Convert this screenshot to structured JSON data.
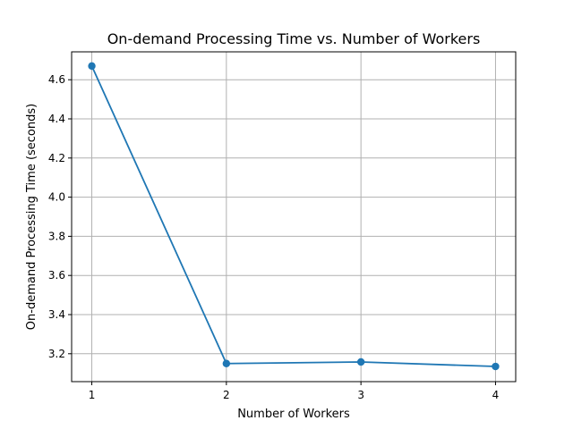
{
  "chart_data": {
    "type": "line",
    "title": "On-demand Processing Time vs. Number of Workers",
    "xlabel": "Number of Workers",
    "ylabel": "On-demand Processing Time (seconds)",
    "x": [
      1,
      2,
      3,
      4
    ],
    "series": [
      {
        "values": [
          4.67,
          3.15,
          3.158,
          3.135
        ],
        "color": "#1f77b4",
        "marker": "circle"
      }
    ],
    "xlim": [
      0.85,
      4.15
    ],
    "ylim": [
      3.0575,
      4.7425
    ],
    "xticks": [
      1,
      2,
      3,
      4
    ],
    "xtick_labels": [
      "1",
      "2",
      "3",
      "4"
    ],
    "yticks": [
      3.2,
      3.4,
      3.6,
      3.8,
      4.0,
      4.2,
      4.4,
      4.6
    ],
    "ytick_labels": [
      "3.2",
      "3.4",
      "3.6",
      "3.8",
      "4.0",
      "4.2",
      "4.4",
      "4.6"
    ],
    "grid": true
  }
}
